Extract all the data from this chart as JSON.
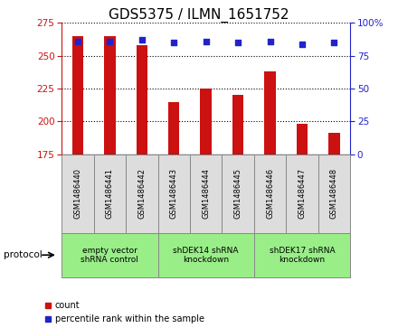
{
  "title": "GDS5375 / ILMN_1651752",
  "samples": [
    "GSM1486440",
    "GSM1486441",
    "GSM1486442",
    "GSM1486443",
    "GSM1486444",
    "GSM1486445",
    "GSM1486446",
    "GSM1486447",
    "GSM1486448"
  ],
  "counts": [
    265,
    265,
    258,
    215,
    225,
    220,
    238,
    198,
    191
  ],
  "percentile_ranks": [
    86,
    86,
    87,
    85,
    86,
    85,
    86,
    84,
    85
  ],
  "ylim_left": [
    175,
    275
  ],
  "ylim_right": [
    0,
    100
  ],
  "yticks_left": [
    175,
    200,
    225,
    250,
    275
  ],
  "yticks_right": [
    0,
    25,
    50,
    75,
    100
  ],
  "bar_color": "#cc1111",
  "dot_color": "#2222cc",
  "groups": [
    {
      "label": "empty vector\nshRNA control",
      "start": 0,
      "end": 3
    },
    {
      "label": "shDEK14 shRNA\nknockdown",
      "start": 3,
      "end": 6
    },
    {
      "label": "shDEK17 shRNA\nknockdown",
      "start": 6,
      "end": 9
    }
  ],
  "group_color": "#99ee88",
  "sample_box_color": "#dddddd",
  "protocol_label": "protocol",
  "title_fontsize": 11,
  "tick_fontsize": 7.5,
  "legend_fontsize": 7
}
